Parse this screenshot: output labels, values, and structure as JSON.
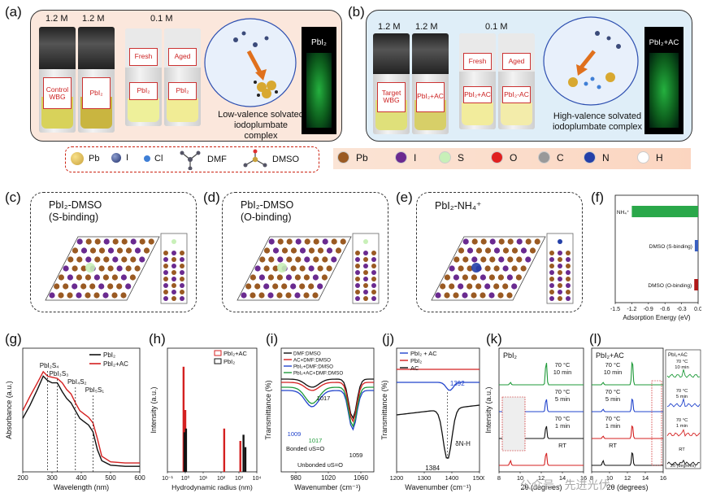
{
  "panels": {
    "a": {
      "label": "(a)",
      "concentrations": [
        "1.2 M",
        "1.2 M",
        "0.1 M"
      ],
      "vials": [
        "Control WBG",
        "PbI₂",
        "Fresh",
        "Aged"
      ],
      "bottom_labels": [
        "PbI₂",
        "PbI₂"
      ],
      "complex": "Low-valence solvated iodoplumbate complex",
      "glow_label": "PbI₂"
    },
    "b": {
      "label": "(b)",
      "concentrations": [
        "1.2 M",
        "1.2 M",
        "0.1 M"
      ],
      "vials": [
        "Target WBG",
        "PbI₂+AC",
        "Fresh",
        "Aged"
      ],
      "bottom_labels": [
        "PbI₂+AC",
        "PbI₂-AC"
      ],
      "complex": "High-valence solvated iodoplumbate complex",
      "glow_label": "PbI₂+AC"
    },
    "c": {
      "label": "(c)",
      "title": "PbI₂-DMSO",
      "subtitle": "(S-binding)"
    },
    "d": {
      "label": "(d)",
      "title": "PbI₂-DMSO",
      "subtitle": "(O-binding)"
    },
    "e": {
      "label": "(e)",
      "title": "PbI₂-NH₄⁺"
    },
    "f": {
      "label": "(f)"
    },
    "g": {
      "label": "(g)"
    },
    "h": {
      "label": "(h)"
    },
    "i": {
      "label": "(i)"
    },
    "j": {
      "label": "(j)"
    },
    "k": {
      "label": "(k)"
    },
    "l": {
      "label": "(l)"
    }
  },
  "legend1": [
    {
      "name": "Pb",
      "color": "#c9a13a"
    },
    {
      "name": "I",
      "color": "#1f2e6b"
    },
    {
      "name": "Cl",
      "color": "#3f7fd6"
    },
    {
      "name": "DMF",
      "color": "#555"
    },
    {
      "name": "DMSO",
      "color": "#555"
    }
  ],
  "legend2": [
    {
      "name": "Pb",
      "color": "#9a5a22"
    },
    {
      "name": "I",
      "color": "#6a2a90"
    },
    {
      "name": "S",
      "color": "#c8f0b8"
    },
    {
      "name": "O",
      "color": "#e02020"
    },
    {
      "name": "C",
      "color": "#999999"
    },
    {
      "name": "N",
      "color": "#2440a8"
    },
    {
      "name": "H",
      "color": "#ffffff"
    }
  ],
  "watermark": "公众号 · 先进光伏",
  "chart_data": [
    {
      "id": "f",
      "type": "bar",
      "categories": [
        "NH₄⁺",
        "DMSO (S-binding)",
        "DMSO (O-binding)"
      ],
      "values": [
        -1.2,
        -0.06,
        -0.07
      ],
      "colors": [
        "#2aa84a",
        "#3a5fc0",
        "#b01818"
      ],
      "xlabel": "Adsorption Energy (eV)",
      "ylabel": "",
      "xlim": [
        -1.5,
        0
      ],
      "xticks": [
        "-1.5",
        "-1.2",
        "-0.9",
        "-0.6",
        "-0.3",
        "0.0"
      ]
    },
    {
      "id": "g",
      "type": "line",
      "xlabel": "Wavelength (nm)",
      "ylabel": "Absorbance (a.u.)",
      "xlim": [
        200,
        600
      ],
      "xticks": [
        "200",
        "300",
        "400",
        "500",
        "600"
      ],
      "series": [
        {
          "name": "PbI₂",
          "color": "#111111",
          "x": [
            200,
            225,
            250,
            270,
            285,
            300,
            318,
            335,
            350,
            365,
            380,
            395,
            410,
            425,
            440,
            455,
            470,
            500,
            550,
            600
          ],
          "y": [
            0.48,
            0.6,
            0.74,
            0.86,
            0.82,
            0.8,
            0.8,
            0.72,
            0.66,
            0.62,
            0.55,
            0.48,
            0.45,
            0.42,
            0.36,
            0.2,
            0.1,
            0.06,
            0.05,
            0.05
          ]
        },
        {
          "name": "PbI₂+AC",
          "color": "#d42020",
          "x": [
            200,
            225,
            250,
            270,
            285,
            300,
            318,
            335,
            350,
            365,
            380,
            395,
            410,
            425,
            440,
            455,
            470,
            500,
            550,
            600
          ],
          "y": [
            0.55,
            0.68,
            0.8,
            0.9,
            0.86,
            0.85,
            0.84,
            0.8,
            0.74,
            0.7,
            0.62,
            0.55,
            0.52,
            0.49,
            0.44,
            0.3,
            0.14,
            0.09,
            0.08,
            0.08
          ]
        }
      ],
      "annotations": [
        {
          "text": "PbI₂S₄",
          "x": 285
        },
        {
          "text": "PbI₃S₃",
          "x": 318
        },
        {
          "text": "PbI₄S₂",
          "x": 380
        },
        {
          "text": "PbI₅S₁",
          "x": 440
        }
      ]
    },
    {
      "id": "h",
      "type": "bar",
      "xlabel": "Hydrodynamic radius (nm)",
      "ylabel": "Intensity (a.u.)",
      "xticks": [
        "10⁻¹",
        "10⁰",
        "10¹",
        "10²",
        "10³",
        "10⁴"
      ],
      "series": [
        {
          "name": "PbI₂+AC",
          "color": "#d42020",
          "x": [
            0.8,
            1.0,
            150,
            1200
          ],
          "values": [
            0.85,
            0.5,
            0.35,
            0.25
          ]
        },
        {
          "name": "PbI₂",
          "color": "#111111",
          "x": [
            0.9,
            1.1,
            1800,
            2300
          ],
          "values": [
            0.32,
            0.35,
            0.3,
            0.2
          ]
        }
      ]
    },
    {
      "id": "i",
      "type": "line",
      "xlabel": "Wavenumber (cm⁻¹)",
      "ylabel": "Transmittance (%)",
      "xticks": [
        "980",
        "1020",
        "1060"
      ],
      "series": [
        {
          "name": "DMF:DMSO",
          "color": "#111111"
        },
        {
          "name": "AC+DMF:DMSO",
          "color": "#d42020"
        },
        {
          "name": "PbI₂+DMF:DMSO",
          "color": "#2244cc"
        },
        {
          "name": "PbI₂+AC+DMF:DMSO",
          "color": "#1f9a3a"
        }
      ],
      "annotations": [
        "1017",
        "1009",
        "1017",
        "1059",
        "Bonded υS=O",
        "Unbonded υS=O"
      ]
    },
    {
      "id": "j",
      "type": "line",
      "xlabel": "Wavenumber (cm⁻¹)",
      "ylabel": "Transmittance (%)",
      "xticks": [
        "1200",
        "1300",
        "1400",
        "1500"
      ],
      "series": [
        {
          "name": "PbI₂ + AC",
          "color": "#2244cc"
        },
        {
          "name": "PbI₂",
          "color": "#d42020"
        },
        {
          "name": "AC",
          "color": "#111111"
        }
      ],
      "annotations": [
        "1392",
        "1384",
        "δN-H"
      ]
    },
    {
      "id": "k",
      "type": "line",
      "title": "PbI₂",
      "xlabel": "2θ (degrees)",
      "ylabel": "Intensity (a.u.)",
      "xticks": [
        "8",
        "10",
        "12",
        "14",
        "16"
      ],
      "series": [
        {
          "name": "RT",
          "color": "#d42020"
        },
        {
          "name": "70 °C 1 min",
          "color": "#111111"
        },
        {
          "name": "70 °C 5 min",
          "color": "#2244cc"
        },
        {
          "name": "70 °C 10 min",
          "color": "#1f9a3a"
        }
      ]
    },
    {
      "id": "l",
      "type": "line",
      "title": "PbI₂+AC",
      "xlabel": "2θ (degrees)",
      "ylabel": "",
      "xticks": [
        "8",
        "10",
        "12",
        "14",
        "16"
      ],
      "series": [
        {
          "name": "RT",
          "color": "#111111"
        },
        {
          "name": "70 °C 1 min",
          "color": "#d42020"
        },
        {
          "name": "70 °C 5 min",
          "color": "#2244cc"
        },
        {
          "name": "70 °C 10 min",
          "color": "#1f9a3a"
        }
      ],
      "inset_title": "PbI₂+AC",
      "inset_labels": [
        "70 °C 10 min",
        "70 °C 5 min",
        "70 °C 1 min",
        "RT"
      ],
      "inset_xlabel": "2θ (degrees)"
    }
  ]
}
